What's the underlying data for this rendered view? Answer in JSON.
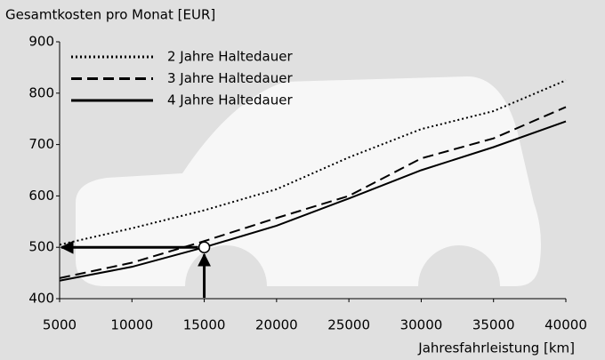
{
  "chart_data": {
    "type": "line",
    "title": "Gesamtkosten pro Monat [EUR]",
    "x_label": "Jahresfahrleistung [km]",
    "x": [
      5000,
      10000,
      15000,
      20000,
      25000,
      30000,
      35000,
      40000
    ],
    "series": [
      {
        "name": "2 Jahre Haltedauer",
        "color": "#000000",
        "style": "dotted",
        "values": [
          505,
          537,
          572,
          613,
          675,
          730,
          765,
          825
        ]
      },
      {
        "name": "3 Jahre Haltedauer",
        "color": "#000000",
        "style": "dashed",
        "values": [
          440,
          470,
          512,
          557,
          600,
          673,
          712,
          773
        ]
      },
      {
        "name": "4 Jahre Haltedauer",
        "color": "#000000",
        "style": "solid",
        "values": [
          435,
          462,
          500,
          542,
          595,
          650,
          695,
          745
        ]
      }
    ],
    "marker": {
      "x": 15000,
      "y": 500
    },
    "xlim": [
      5000,
      40000
    ],
    "xticks": [
      5000,
      10000,
      15000,
      20000,
      25000,
      30000,
      35000,
      40000
    ],
    "ylim": [
      400,
      900
    ],
    "yticks": [
      400,
      500,
      600,
      700,
      800,
      900
    ],
    "grid": false,
    "legend": "top-left"
  }
}
